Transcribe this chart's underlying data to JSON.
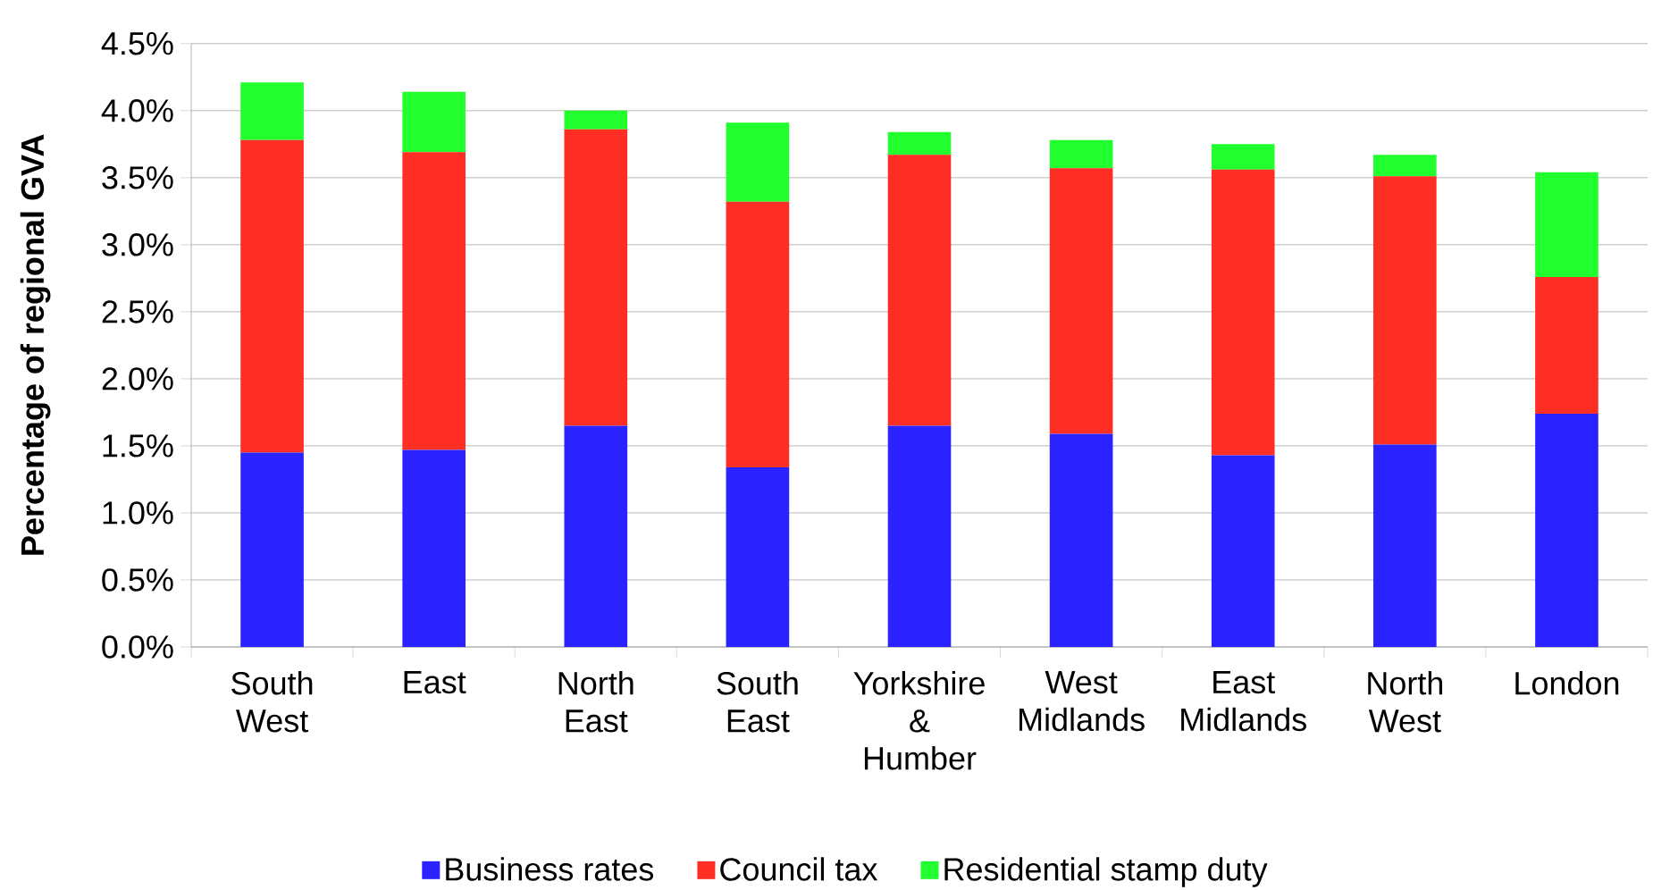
{
  "chart_data": {
    "type": "bar",
    "stacked": true,
    "ylabel": "Percentage of regional GVA",
    "categories": [
      "South West",
      "East",
      "North East",
      "South East",
      "Yorkshire & Humber",
      "West Midlands",
      "East Midlands",
      "North West",
      "London"
    ],
    "series": [
      {
        "name": "Business rates",
        "color": "#2a22ff",
        "values": [
          1.45,
          1.47,
          1.65,
          1.34,
          1.65,
          1.59,
          1.43,
          1.51,
          1.74
        ]
      },
      {
        "name": "Council tax",
        "color": "#ff2e25",
        "values": [
          2.33,
          2.22,
          2.21,
          1.98,
          2.02,
          1.98,
          2.13,
          2.0,
          1.02
        ]
      },
      {
        "name": "Residential stamp duty",
        "color": "#22ff2e",
        "values": [
          0.43,
          0.45,
          0.14,
          0.59,
          0.17,
          0.21,
          0.19,
          0.16,
          0.78
        ]
      }
    ],
    "ylim": [
      0,
      4.5
    ],
    "yticks": [
      {
        "value": 0,
        "label": "0.0%"
      },
      {
        "value": 0.5,
        "label": "0.5%"
      },
      {
        "value": 1,
        "label": "1.0%"
      },
      {
        "value": 1.5,
        "label": "1.5%"
      },
      {
        "value": 2,
        "label": "2.0%"
      },
      {
        "value": 2.5,
        "label": "2.5%"
      },
      {
        "value": 3,
        "label": "3.0%"
      },
      {
        "value": 3.5,
        "label": "3.5%"
      },
      {
        "value": 4,
        "label": "4.0%"
      },
      {
        "value": 4.5,
        "label": "4.5%"
      }
    ],
    "grid": "y",
    "legend": "bottom"
  }
}
